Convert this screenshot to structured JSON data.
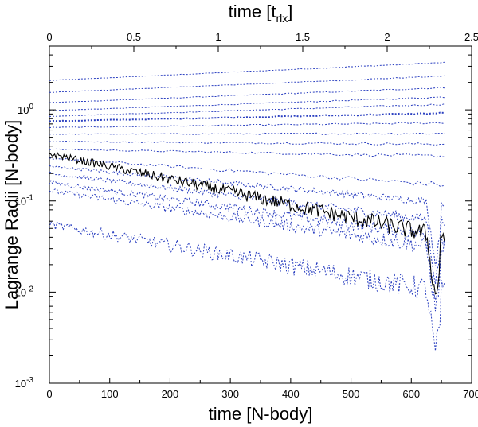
{
  "chart_data": {
    "type": "line",
    "xlabel": "time [N-body]",
    "x2label": "time [t",
    "x2label_sub": "rlx",
    "x2label_close": "]",
    "ylabel": "Lagrange Radii [N-body]",
    "xlim": [
      0,
      700
    ],
    "x2lim": [
      0,
      2.5
    ],
    "ylim": [
      0.001,
      5
    ],
    "yscale": "log",
    "x_ticks": [
      "0",
      "100",
      "200",
      "300",
      "400",
      "500",
      "600",
      "700"
    ],
    "x2_ticks": [
      "0",
      "0.5",
      "1",
      "1.5",
      "2",
      "2.5"
    ],
    "y_ticks": [
      {
        "base": "10",
        "exp": "-3",
        "value": 0.001
      },
      {
        "base": "10",
        "exp": "-2",
        "value": 0.01
      },
      {
        "base": "10",
        "exp": "-1",
        "value": 0.1
      },
      {
        "base": "10",
        "exp": "0",
        "value": 1
      }
    ],
    "x_end": 655,
    "colors": {
      "lagrange": "#2a3fc0",
      "core": "#000000"
    },
    "series": [
      {
        "start": 2.1,
        "end": 3.3,
        "noise": 0.004
      },
      {
        "start": 1.55,
        "end": 2.35,
        "noise": 0.004
      },
      {
        "start": 1.2,
        "end": 1.75,
        "noise": 0.005
      },
      {
        "start": 0.98,
        "end": 1.38,
        "noise": 0.005
      },
      {
        "start": 0.85,
        "end": 1.15,
        "noise": 0.006
      },
      {
        "start": 0.75,
        "end": 0.92,
        "noise": 0.006
      },
      {
        "start": 0.64,
        "end": 0.72,
        "noise": 0.007
      },
      {
        "start": 0.54,
        "end": 0.55,
        "noise": 0.008
      },
      {
        "start": 0.45,
        "end": 0.42,
        "noise": 0.01
      },
      {
        "start": 0.37,
        "end": 0.31,
        "noise": 0.012
      },
      {
        "start": 0.295,
        "end": 0.15,
        "noise": 0.02
      },
      {
        "start": 0.24,
        "end": 0.095,
        "noise": 0.03
      },
      {
        "start": 0.2,
        "end": 0.06,
        "noise": 0.04
      },
      {
        "start": 0.16,
        "end": 0.04,
        "noise": 0.05
      },
      {
        "start": 0.13,
        "end": 0.03,
        "noise": 0.06
      },
      {
        "start": 0.055,
        "end": 0.01,
        "noise": 0.09
      }
    ],
    "core_series": {
      "start": 0.33,
      "end": 0.04,
      "noise": 0.07
    }
  }
}
